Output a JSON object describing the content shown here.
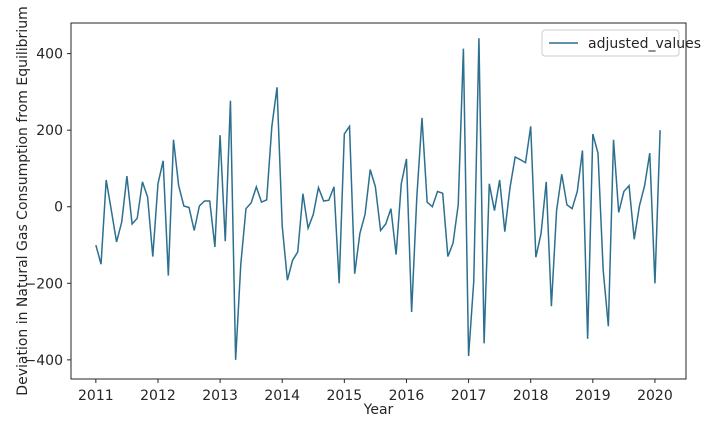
{
  "chart_data": {
    "type": "line",
    "title": "",
    "xlabel": "Year",
    "ylabel": "Deviation in Natural Gas Consumption from Equilibrium",
    "xlim": [
      2010.6,
      2020.5
    ],
    "ylim": [
      -450,
      480
    ],
    "x_ticks": [
      2011,
      2012,
      2013,
      2014,
      2015,
      2016,
      2017,
      2018,
      2019,
      2020
    ],
    "x_tick_labels": [
      "2011",
      "2012",
      "2013",
      "2014",
      "2015",
      "2016",
      "2017",
      "2018",
      "2019",
      "2020"
    ],
    "y_ticks": [
      -400,
      -200,
      0,
      200,
      400
    ],
    "y_tick_labels": [
      "−400",
      "−200",
      "0",
      "200",
      "400"
    ],
    "grid": false,
    "legend": {
      "position": "top-right"
    },
    "series": [
      {
        "name": "adjusted_values",
        "color": "#2c6f8f",
        "x_start": 2011.0,
        "x_step": 0.0833333,
        "values": [
          -100,
          -150,
          70,
          -10,
          -92,
          -40,
          80,
          -45,
          -30,
          65,
          25,
          -130,
          60,
          120,
          -180,
          175,
          55,
          2,
          -2,
          -62,
          2,
          15,
          15,
          -105,
          187,
          -90,
          277,
          -400,
          -150,
          -5,
          10,
          52,
          12,
          18,
          210,
          312,
          -50,
          -192,
          -140,
          -118,
          34,
          -56,
          -20,
          50,
          15,
          17,
          52,
          -200,
          190,
          210,
          -175,
          -70,
          -20,
          97,
          52,
          -62,
          -45,
          -5,
          -125,
          60,
          125,
          -275,
          25,
          232,
          12,
          0,
          40,
          35,
          -130,
          -95,
          5,
          413,
          -390,
          -195,
          440,
          -357,
          60,
          -10,
          70,
          -65,
          50,
          130,
          123,
          115,
          210,
          -132,
          -70,
          65,
          -260,
          -10,
          85,
          5,
          -5,
          40,
          147,
          -345,
          190,
          140,
          -165,
          -312,
          175,
          -15,
          40,
          55,
          -85,
          2,
          55,
          140,
          -200,
          200
        ]
      }
    ]
  }
}
